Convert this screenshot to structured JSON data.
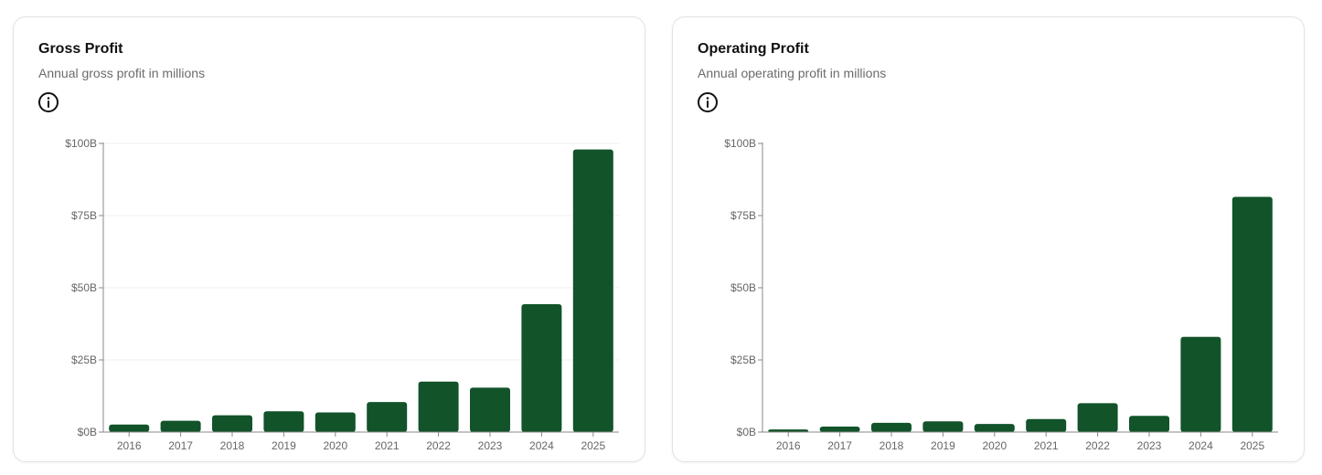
{
  "colors": {
    "bar": "#12532a",
    "axis": "#888888",
    "grid": "#efefef"
  },
  "cards": [
    {
      "title": "Gross Profit",
      "subtitle": "Annual gross profit in millions",
      "info_icon": "info-icon"
    },
    {
      "title": "Operating Profit",
      "subtitle": "Annual operating profit in millions",
      "info_icon": "info-icon"
    }
  ],
  "chart_data": [
    {
      "type": "bar",
      "categories": [
        "2016",
        "2017",
        "2018",
        "2019",
        "2020",
        "2021",
        "2022",
        "2023",
        "2024",
        "2025"
      ],
      "values": [
        2.6,
        3.9,
        5.8,
        7.2,
        6.8,
        10.4,
        17.5,
        15.4,
        44.3,
        97.9
      ],
      "unit": "billions USD",
      "yticks": [
        "$0B",
        "$25B",
        "$50B",
        "$75B",
        "$100B"
      ],
      "ylim": [
        0,
        100
      ],
      "grid": true,
      "title": "Gross Profit",
      "xlabel": "",
      "ylabel": ""
    },
    {
      "type": "bar",
      "categories": [
        "2016",
        "2017",
        "2018",
        "2019",
        "2020",
        "2021",
        "2022",
        "2023",
        "2024",
        "2025"
      ],
      "values": [
        0.9,
        1.9,
        3.2,
        3.7,
        2.8,
        4.5,
        10.0,
        5.6,
        33.0,
        81.5
      ],
      "unit": "billions USD",
      "yticks": [
        "$0B",
        "$25B",
        "$50B",
        "$75B",
        "$100B"
      ],
      "ylim": [
        0,
        100
      ],
      "grid": false,
      "title": "Operating Profit",
      "xlabel": "",
      "ylabel": ""
    }
  ]
}
